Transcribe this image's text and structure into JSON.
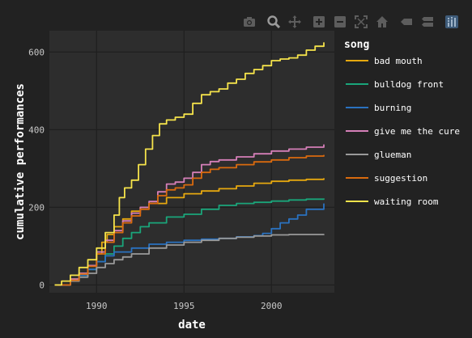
{
  "modebar": {
    "buttons": [
      {
        "name": "camera-icon"
      },
      {
        "name": "zoom-icon"
      },
      {
        "name": "pan-icon"
      },
      {
        "name": "zoom-in-icon"
      },
      {
        "name": "zoom-out-icon"
      },
      {
        "name": "autoscale-icon"
      },
      {
        "name": "home-icon"
      },
      {
        "name": "hover-closest-icon"
      },
      {
        "name": "hover-compare-icon"
      },
      {
        "name": "plotly-logo-icon"
      }
    ]
  },
  "chart_data": {
    "type": "line",
    "xlabel": "date",
    "ylabel": "cumulative performances",
    "xlim": [
      1987.3,
      2003.6
    ],
    "ylim": [
      -20,
      655
    ],
    "xticks": [
      1990,
      1995,
      2000
    ],
    "yticks": [
      0,
      200,
      400,
      600
    ],
    "grid": true,
    "legend": {
      "title": "song",
      "placement": "right"
    },
    "series": [
      {
        "name": "bad mouth",
        "color": "#E6A80F",
        "x": [
          1987.6,
          1988.5,
          1989.0,
          1989.5,
          1990.0,
          1990.3,
          1990.6,
          1991.0,
          1991.5,
          1992.0,
          1992.5,
          1993.0,
          1994.0,
          1995.0,
          1996.0,
          1997.0,
          1998.0,
          1999.0,
          2000.0,
          2001.0,
          2002.0,
          2003.0
        ],
        "y": [
          0,
          15,
          30,
          50,
          80,
          110,
          130,
          150,
          170,
          190,
          200,
          210,
          225,
          235,
          242,
          248,
          255,
          262,
          267,
          270,
          272,
          275
        ]
      },
      {
        "name": "bulldog front",
        "color": "#1AA57A",
        "x": [
          1988.0,
          1988.5,
          1989.0,
          1989.5,
          1990.0,
          1990.5,
          1991.0,
          1991.5,
          1992.0,
          1992.5,
          1993.0,
          1994.0,
          1995.0,
          1996.0,
          1997.0,
          1998.0,
          1999.0,
          2000.0,
          2001.0,
          2002.0,
          2003.0
        ],
        "y": [
          0,
          10,
          25,
          40,
          60,
          80,
          100,
          120,
          135,
          150,
          160,
          175,
          182,
          195,
          205,
          210,
          213,
          216,
          219,
          221,
          223
        ]
      },
      {
        "name": "burning",
        "color": "#2A72C0",
        "x": [
          1988.0,
          1988.5,
          1989.0,
          1989.5,
          1990.0,
          1990.5,
          1991.0,
          1992.0,
          1993.0,
          1994.0,
          1995.0,
          1996.0,
          1997.0,
          1998.0,
          1999.0,
          1999.5,
          2000.0,
          2000.5,
          2001.0,
          2001.5,
          2002.0,
          2003.0
        ],
        "y": [
          0,
          10,
          25,
          40,
          60,
          75,
          85,
          95,
          105,
          110,
          115,
          118,
          120,
          124,
          127,
          133,
          145,
          160,
          170,
          180,
          195,
          210
        ]
      },
      {
        "name": "give me the cure",
        "color": "#D57FB8",
        "x": [
          1987.8,
          1988.5,
          1989.0,
          1989.5,
          1990.0,
          1990.5,
          1991.0,
          1991.5,
          1992.0,
          1992.5,
          1993.0,
          1993.5,
          1994.0,
          1994.5,
          1995.0,
          1995.5,
          1996.0,
          1996.5,
          1997.0,
          1998.0,
          1999.0,
          2000.0,
          2001.0,
          2002.0,
          2003.0
        ],
        "y": [
          0,
          15,
          30,
          50,
          85,
          115,
          140,
          165,
          185,
          200,
          215,
          240,
          260,
          265,
          275,
          290,
          310,
          318,
          322,
          330,
          338,
          345,
          350,
          355,
          362
        ]
      },
      {
        "name": "glueman",
        "color": "#9A9A9A",
        "x": [
          1988.2,
          1988.5,
          1989.0,
          1989.5,
          1990.0,
          1990.5,
          1991.0,
          1991.5,
          1992.0,
          1993.0,
          1994.0,
          1995.0,
          1996.0,
          1997.0,
          1998.0,
          1999.0,
          2000.0,
          2001.0,
          2002.0,
          2003.0
        ],
        "y": [
          0,
          10,
          20,
          30,
          45,
          55,
          65,
          72,
          80,
          95,
          103,
          110,
          115,
          120,
          123,
          126,
          129,
          130,
          130,
          131
        ]
      },
      {
        "name": "suggestion",
        "color": "#D96A0E",
        "x": [
          1987.7,
          1988.5,
          1989.0,
          1989.5,
          1990.0,
          1990.5,
          1991.0,
          1991.5,
          1992.0,
          1992.5,
          1993.0,
          1993.5,
          1994.0,
          1994.5,
          1995.0,
          1995.5,
          1996.0,
          1996.5,
          1997.0,
          1998.0,
          1999.0,
          2000.0,
          2001.0,
          2002.0,
          2003.0
        ],
        "y": [
          0,
          12,
          28,
          48,
          80,
          110,
          135,
          160,
          178,
          195,
          210,
          230,
          245,
          250,
          258,
          275,
          290,
          298,
          302,
          310,
          317,
          322,
          328,
          332,
          335
        ]
      },
      {
        "name": "waiting room",
        "color": "#F5E34B",
        "x": [
          1987.6,
          1988.0,
          1988.5,
          1989.0,
          1989.5,
          1990.0,
          1990.5,
          1991.0,
          1991.3,
          1991.6,
          1992.0,
          1992.4,
          1992.8,
          1993.2,
          1993.6,
          1994.0,
          1994.5,
          1995.0,
          1995.5,
          1996.0,
          1996.5,
          1997.0,
          1997.5,
          1998.0,
          1998.5,
          1999.0,
          1999.5,
          2000.0,
          2000.5,
          2001.0,
          2001.5,
          2002.0,
          2002.5,
          2003.0
        ],
        "y": [
          0,
          10,
          25,
          45,
          65,
          95,
          135,
          180,
          225,
          250,
          270,
          310,
          350,
          385,
          415,
          425,
          432,
          440,
          468,
          490,
          498,
          505,
          520,
          530,
          545,
          555,
          565,
          578,
          582,
          585,
          592,
          605,
          615,
          625
        ]
      }
    ]
  }
}
